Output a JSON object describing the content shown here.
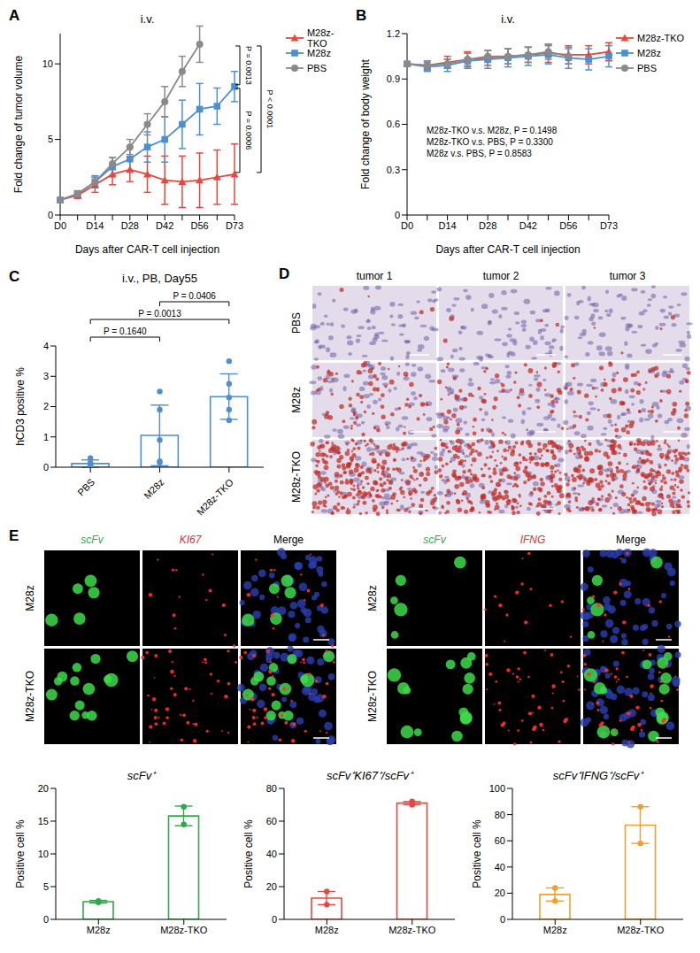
{
  "chart_data": [
    {
      "panel_label": "A",
      "type": "line",
      "title": "i.v.",
      "x_label": "Days after CAR-T cell injection",
      "y_label": "Fold change of tumor volume",
      "categories": [
        "D0",
        null,
        "D14",
        null,
        "D28",
        null,
        "D42",
        null,
        "D56",
        null,
        "D73"
      ],
      "ylim": [
        0,
        12
      ],
      "yticks": [
        0,
        5,
        10
      ],
      "legend": "right",
      "series": [
        {
          "name": "M28z-TKO",
          "color": "#e8473e",
          "marker": "triangle",
          "values": [
            1,
            1.3,
            2.0,
            2.7,
            3.0,
            2.7,
            2.3,
            2.2,
            2.3,
            2.5,
            2.7
          ],
          "errors": [
            0.05,
            0.2,
            0.5,
            0.7,
            0.8,
            1.2,
            1.6,
            1.7,
            1.8,
            1.8,
            2.0
          ]
        },
        {
          "name": "M28z",
          "color": "#4f8fd0",
          "marker": "square",
          "values": [
            1,
            1.4,
            2.2,
            3.2,
            3.7,
            4.5,
            5.0,
            6.0,
            7.0,
            7.2,
            8.5
          ],
          "errors": [
            0.05,
            0.2,
            0.4,
            0.6,
            0.8,
            1.0,
            1.5,
            1.6,
            1.7,
            1.2,
            1.0
          ]
        },
        {
          "name": "PBS",
          "color": "#8a8a8a",
          "marker": "circle",
          "values": [
            1,
            1.4,
            2.2,
            3.4,
            4.5,
            6.0,
            7.5,
            9.5,
            11.3,
            null,
            null
          ],
          "errors": [
            0.05,
            0.2,
            0.3,
            0.4,
            0.5,
            0.7,
            1.0,
            1.0,
            1.2,
            null,
            null
          ]
        }
      ],
      "annotations": [
        {
          "label": "P = 0.0013",
          "from": "PBS",
          "to": "M28z"
        },
        {
          "label": "P < 0.0001",
          "from": "PBS",
          "to": "M28z-TKO"
        },
        {
          "label": "P = 0.0006",
          "from": "M28z",
          "to": "M28z-TKO"
        }
      ]
    },
    {
      "panel_label": "B",
      "type": "line",
      "title": "i.v.",
      "x_label": "Days after CAR-T cell injection",
      "y_label": "Fold change of body weight",
      "categories": [
        "D0",
        null,
        "D14",
        null,
        "D28",
        null,
        "D42",
        null,
        "D56",
        null,
        "D73"
      ],
      "ylim": [
        0,
        1.2
      ],
      "yticks": [
        0,
        0.3,
        0.6,
        0.9,
        1.2
      ],
      "legend": "right",
      "series": [
        {
          "name": "M28z-TKO",
          "color": "#e8473e",
          "marker": "triangle",
          "values": [
            1,
            0.99,
            1.01,
            1.03,
            1.04,
            1.05,
            1.06,
            1.07,
            1.06,
            1.06,
            1.08
          ],
          "errors": [
            0.01,
            0.03,
            0.04,
            0.05,
            0.05,
            0.05,
            0.05,
            0.06,
            0.06,
            0.06,
            0.06
          ]
        },
        {
          "name": "M28z",
          "color": "#4f8fd0",
          "marker": "square",
          "values": [
            1,
            0.98,
            0.99,
            1.02,
            1.03,
            1.04,
            1.05,
            1.06,
            1.04,
            1.03,
            1.05
          ],
          "errors": [
            0.01,
            0.03,
            0.04,
            0.05,
            0.06,
            0.06,
            0.06,
            0.06,
            0.07,
            0.07,
            0.07
          ]
        },
        {
          "name": "PBS",
          "color": "#8a8a8a",
          "marker": "circle",
          "values": [
            1,
            0.99,
            1.0,
            1.03,
            1.05,
            1.05,
            1.06,
            1.08,
            1.05,
            null,
            null
          ],
          "errors": [
            0.01,
            0.03,
            0.03,
            0.04,
            0.04,
            0.05,
            0.05,
            0.05,
            0.05,
            null,
            null
          ]
        }
      ],
      "annotations": [
        "M28z-TKO v.s. M28z, P = 0.1498",
        "M28z-TKO v.s. PBS, P = 0.3300",
        "M28z v.s. PBS, P = 0.8583"
      ]
    },
    {
      "panel_label": "C",
      "type": "bar",
      "title": "i.v., PB, Day55",
      "y_label": "hCD3 positive %",
      "categories": [
        "PBS",
        "M28z",
        "M28z-TKO"
      ],
      "values": [
        0.12,
        1.05,
        2.33
      ],
      "errors": [
        0.12,
        1.0,
        0.75
      ],
      "points": [
        [
          0.05,
          0.1,
          0.15,
          0.3,
          0.05
        ],
        [
          0.15,
          0.2,
          0.9,
          1.9,
          2.5
        ],
        [
          1.55,
          1.9,
          2.3,
          2.75,
          3.5
        ]
      ],
      "color": "#4f8fd0",
      "ylim": [
        0,
        4
      ],
      "yticks": [
        0,
        1,
        2,
        3,
        4
      ],
      "annotations": [
        {
          "label": "P = 0.1640",
          "from": "PBS",
          "to": "M28z"
        },
        {
          "label": "P = 0.0013",
          "from": "PBS",
          "to": "M28z-TKO"
        },
        {
          "label": "P = 0.0406",
          "from": "M28z",
          "to": "M28z-TKO"
        }
      ]
    },
    {
      "type": "bar",
      "title": "scFv⁺",
      "y_label": "Positive cell %",
      "categories": [
        "M28z",
        "M28z-TKO"
      ],
      "values": [
        2.7,
        15.8
      ],
      "errors": [
        0.2,
        1.5
      ],
      "points": [
        [
          2.6,
          2.8
        ],
        [
          14.5,
          17.2
        ]
      ],
      "color": "#2fa84a",
      "ylim": [
        0,
        20
      ],
      "yticks": [
        0,
        5,
        10,
        15,
        20
      ]
    },
    {
      "type": "bar",
      "title": "scFv⁺KI67⁺/scFv⁺",
      "y_label": "Positive cell %",
      "categories": [
        "M28z",
        "M28z-TKO"
      ],
      "values": [
        13,
        71
      ],
      "errors": [
        4,
        1
      ],
      "points": [
        [
          9,
          17
        ],
        [
          70,
          72
        ]
      ],
      "color": "#e8473e",
      "ylim": [
        0,
        80
      ],
      "yticks": [
        0,
        20,
        40,
        60,
        80
      ]
    },
    {
      "type": "bar",
      "title": "scFv⁺IFNG⁺/scFv⁺",
      "y_label": "Positive cell %",
      "categories": [
        "M28z",
        "M28z-TKO"
      ],
      "values": [
        19,
        72
      ],
      "errors": [
        5,
        14
      ],
      "points": [
        [
          14,
          24
        ],
        [
          58,
          86
        ]
      ],
      "color": "#f0a030",
      "ylim": [
        0,
        100
      ],
      "yticks": [
        0,
        20,
        40,
        60,
        80,
        100
      ]
    }
  ],
  "images": {
    "D": {
      "panel_label": "D",
      "columns": [
        "tumor 1",
        "tumor 2",
        "tumor 3"
      ],
      "rows": [
        "PBS",
        "M28z",
        "M28z-TKO"
      ]
    },
    "E": {
      "panel_label": "E",
      "rows": [
        "M28z",
        "M28z-TKO"
      ],
      "groups": [
        {
          "channels": [
            "scFv",
            "KI67",
            "Merge"
          ]
        },
        {
          "channels": [
            "scFv",
            "IFNG",
            "Merge"
          ]
        }
      ]
    }
  }
}
